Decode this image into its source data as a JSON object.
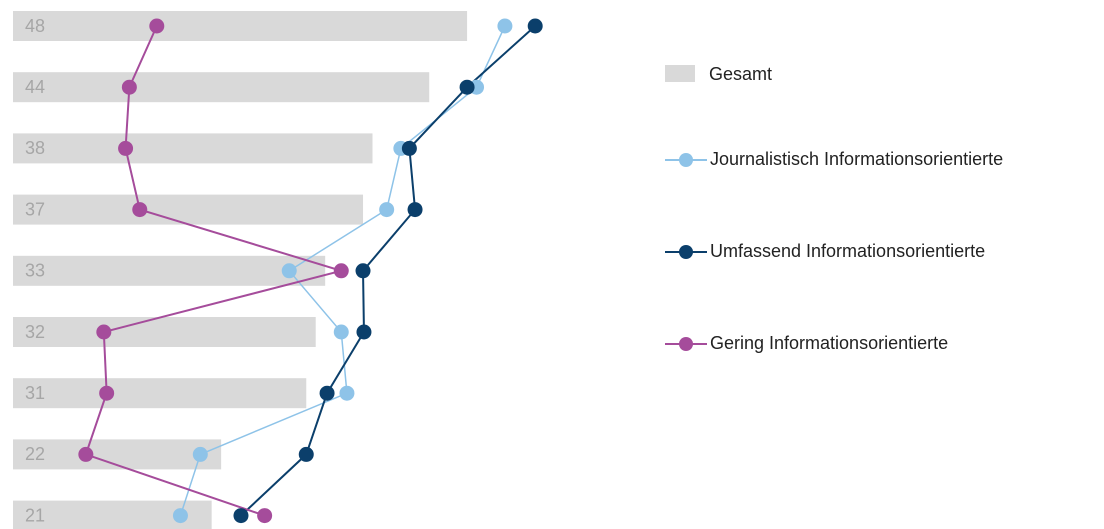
{
  "chart_data": {
    "type": "bar",
    "orientation": "horizontal",
    "categories": [
      null,
      null,
      null,
      null,
      null,
      null,
      null,
      null,
      null
    ],
    "name": "Gesamt",
    "color": "#d9d9d9",
    "values": [
      48,
      44,
      38,
      37,
      33,
      32,
      31,
      22,
      21
    ],
    "xlim": [
      0,
      60
    ],
    "series": [
      {
        "name": "Journalistisch Informationsorientierte",
        "color": "#8ec3e8",
        "values": [
          52,
          49,
          41,
          39.5,
          29.2,
          34.7,
          35.3,
          19.8,
          17.7
        ]
      },
      {
        "name": "Umfassend Informationsorientierte",
        "color": "#0b3f6b",
        "values": [
          55.2,
          48,
          41.9,
          42.5,
          37,
          37.1,
          33.2,
          31,
          24.1
        ]
      },
      {
        "name": "Gering Informationsorientierte",
        "color": "#a54c9b",
        "values": [
          15.2,
          12.3,
          11.9,
          13.4,
          34.7,
          9.6,
          9.9,
          7.7,
          26.6
        ]
      }
    ],
    "legend": "right"
  }
}
